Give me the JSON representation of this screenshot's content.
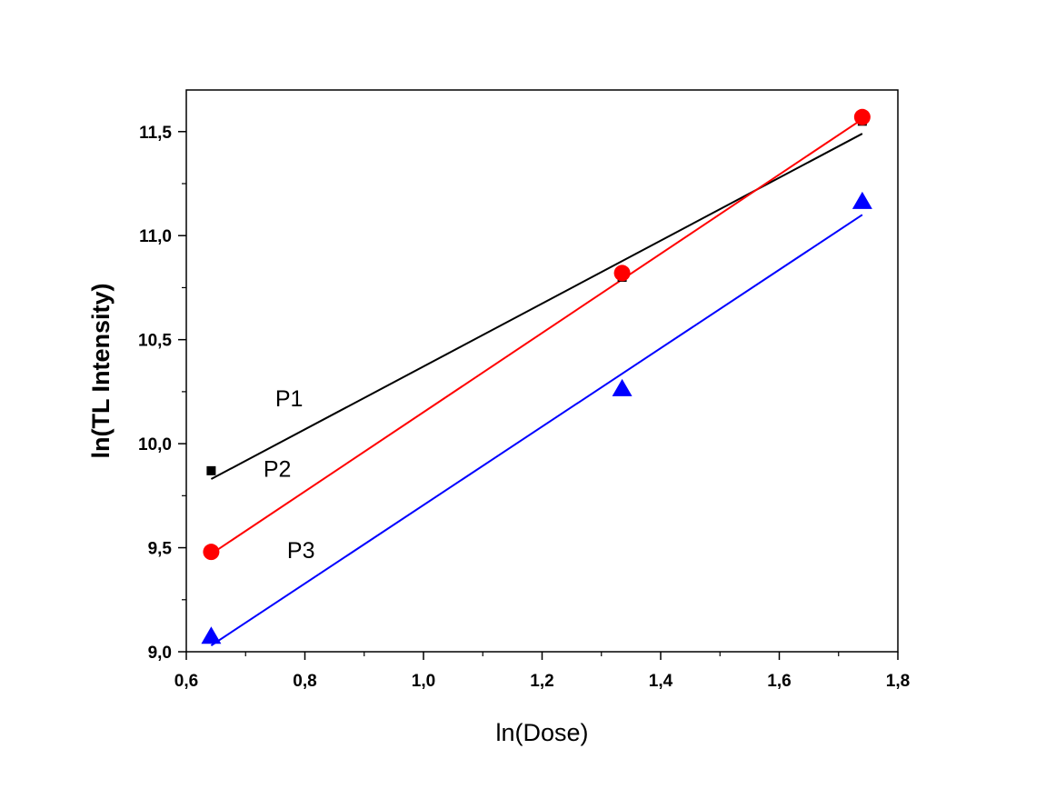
{
  "chart_data": {
    "type": "scatter",
    "title": "",
    "xlabel": "ln(Dose)",
    "ylabel": "ln(TL Intensity)",
    "xlim": [
      0.6,
      1.8
    ],
    "ylim": [
      9.0,
      11.7
    ],
    "x_ticks": [
      "0,6",
      "0,8",
      "1,0",
      "1,2",
      "1,4",
      "1,6",
      "1,8"
    ],
    "y_ticks": [
      "9,0",
      "9,5",
      "10,0",
      "10,5",
      "11,0",
      "11,5"
    ],
    "grid": false,
    "legend": "none",
    "series": [
      {
        "name": "P1",
        "color": "#000000",
        "marker": "square",
        "x": [
          0.642,
          1.335,
          1.74
        ],
        "y": [
          9.87,
          10.8,
          11.55
        ],
        "fit": {
          "x": [
            0.642,
            1.74
          ],
          "y": [
            9.83,
            11.49
          ]
        }
      },
      {
        "name": "P2",
        "color": "#ff0000",
        "marker": "circle",
        "x": [
          0.642,
          1.335,
          1.74
        ],
        "y": [
          9.48,
          10.82,
          11.57
        ],
        "fit": {
          "x": [
            0.642,
            1.74
          ],
          "y": [
            9.47,
            11.56
          ]
        }
      },
      {
        "name": "P3",
        "color": "#0000ff",
        "marker": "triangle",
        "x": [
          0.642,
          1.335,
          1.74
        ],
        "y": [
          9.07,
          10.26,
          11.16
        ],
        "fit": {
          "x": [
            0.642,
            1.74
          ],
          "y": [
            9.03,
            11.1
          ]
        }
      }
    ],
    "annotations": [
      {
        "text": "P1",
        "x": 0.75,
        "y": 10.18
      },
      {
        "text": "P2",
        "x": 0.73,
        "y": 9.84
      },
      {
        "text": "P3",
        "x": 0.77,
        "y": 9.45
      }
    ]
  }
}
